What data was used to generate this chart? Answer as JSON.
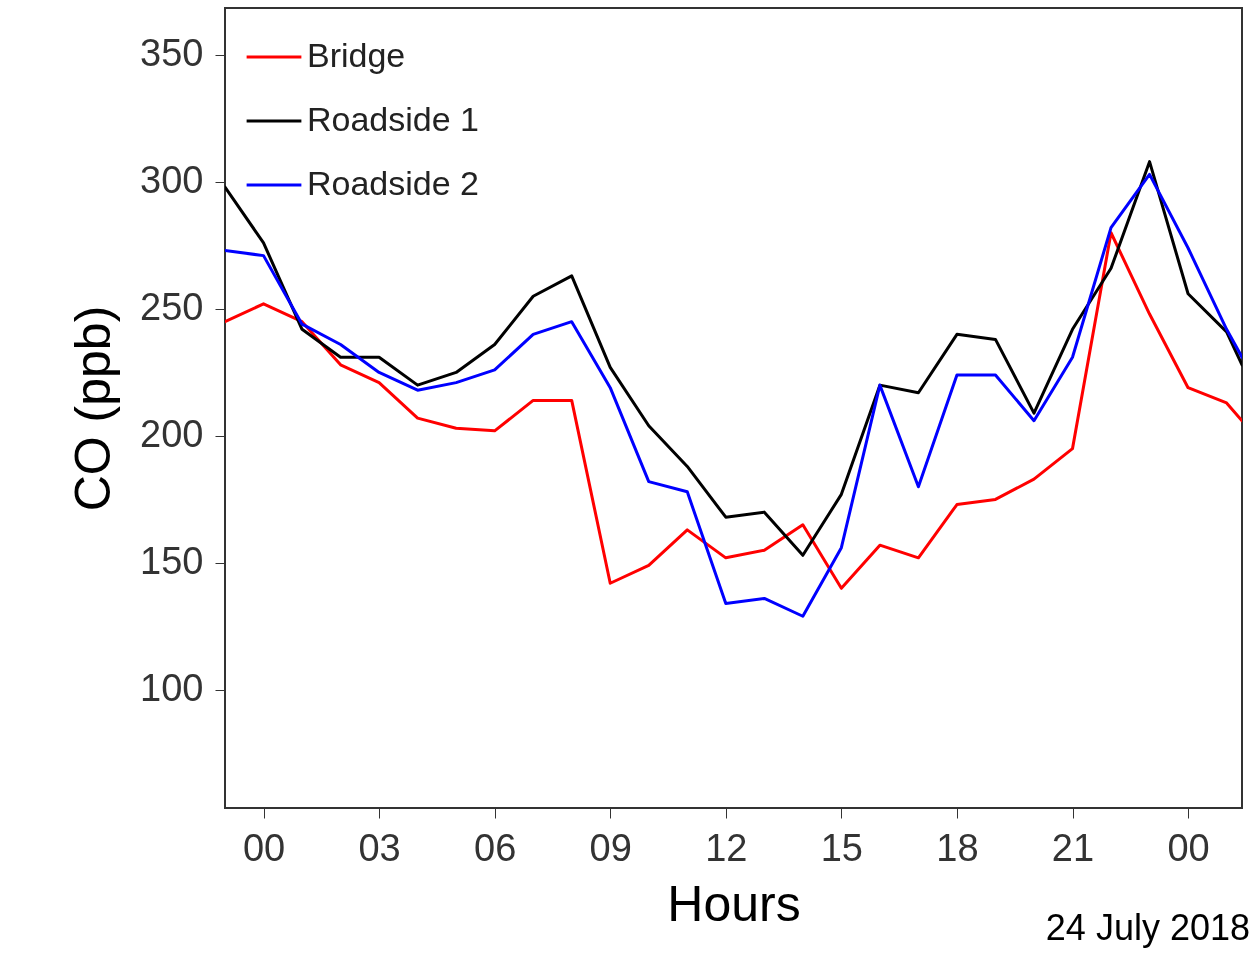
{
  "chart_data": {
    "type": "line",
    "xlabel": "Hours",
    "ylabel": "CO (ppb)",
    "annotations": [
      "24 July 2018"
    ],
    "x": [
      -1,
      0,
      1,
      2,
      3,
      4,
      5,
      6,
      7,
      8,
      9,
      10,
      11,
      12,
      13,
      14,
      15,
      16,
      17,
      18,
      19,
      20,
      21,
      22,
      23,
      24,
      25,
      25.4
    ],
    "series": [
      {
        "name": "Bridge",
        "color": "#ff0000",
        "values": [
          245,
          252,
          245,
          228,
          221,
          207,
          203,
          202,
          214,
          214,
          142,
          149,
          163,
          152,
          155,
          165,
          140,
          157,
          152,
          173,
          175,
          183,
          195,
          280,
          248,
          219,
          213,
          206
        ]
      },
      {
        "name": "Roadside 1",
        "color": "#000000",
        "values": [
          298,
          276,
          242,
          231,
          231,
          220,
          225,
          236,
          255,
          263,
          227,
          204,
          188,
          168,
          170,
          153,
          177,
          220,
          217,
          240,
          238,
          209,
          242,
          266,
          308,
          256,
          241,
          228
        ]
      },
      {
        "name": "Roadside 2",
        "color": "#0000ff",
        "values": [
          273,
          271,
          244,
          236,
          225,
          218,
          221,
          226,
          240,
          245,
          219,
          182,
          178,
          134,
          136,
          129,
          156,
          220,
          180,
          224,
          224,
          206,
          231,
          282,
          303,
          274,
          242,
          231
        ]
      }
    ],
    "xlim": [
      -1,
      25.4
    ],
    "xticks": [
      {
        "value": 0,
        "label": "00"
      },
      {
        "value": 3,
        "label": "03"
      },
      {
        "value": 6,
        "label": "06"
      },
      {
        "value": 9,
        "label": "09"
      },
      12,
      15,
      18,
      21,
      {
        "value": 24,
        "label": "00"
      }
    ],
    "ylim": [
      53.5,
      368.5
    ],
    "yticks": [
      100,
      150,
      200,
      250,
      300,
      350
    ],
    "grid": false,
    "legend": "top left",
    "marker": "none",
    "line_style": "solid"
  }
}
